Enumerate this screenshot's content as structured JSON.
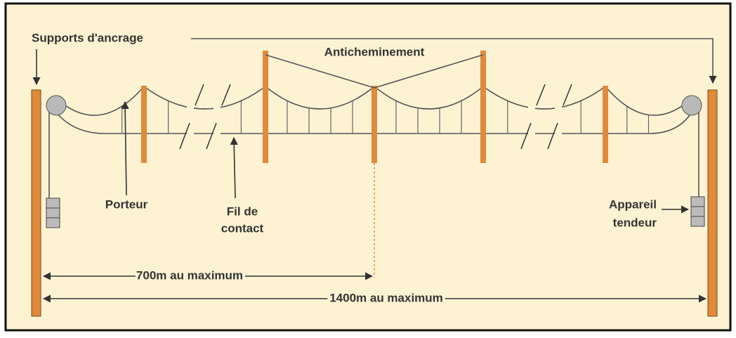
{
  "labels": {
    "supports": "Supports d'ancrage",
    "anticheminement": "Anticheminement",
    "porteur": "Porteur",
    "fil_de_contact": [
      "Fil de",
      "contact"
    ],
    "appareil_tendeur": [
      "Appareil",
      "tendeur"
    ],
    "span_half": "700m au maximum",
    "span_full": "1400m au maximum"
  }
}
